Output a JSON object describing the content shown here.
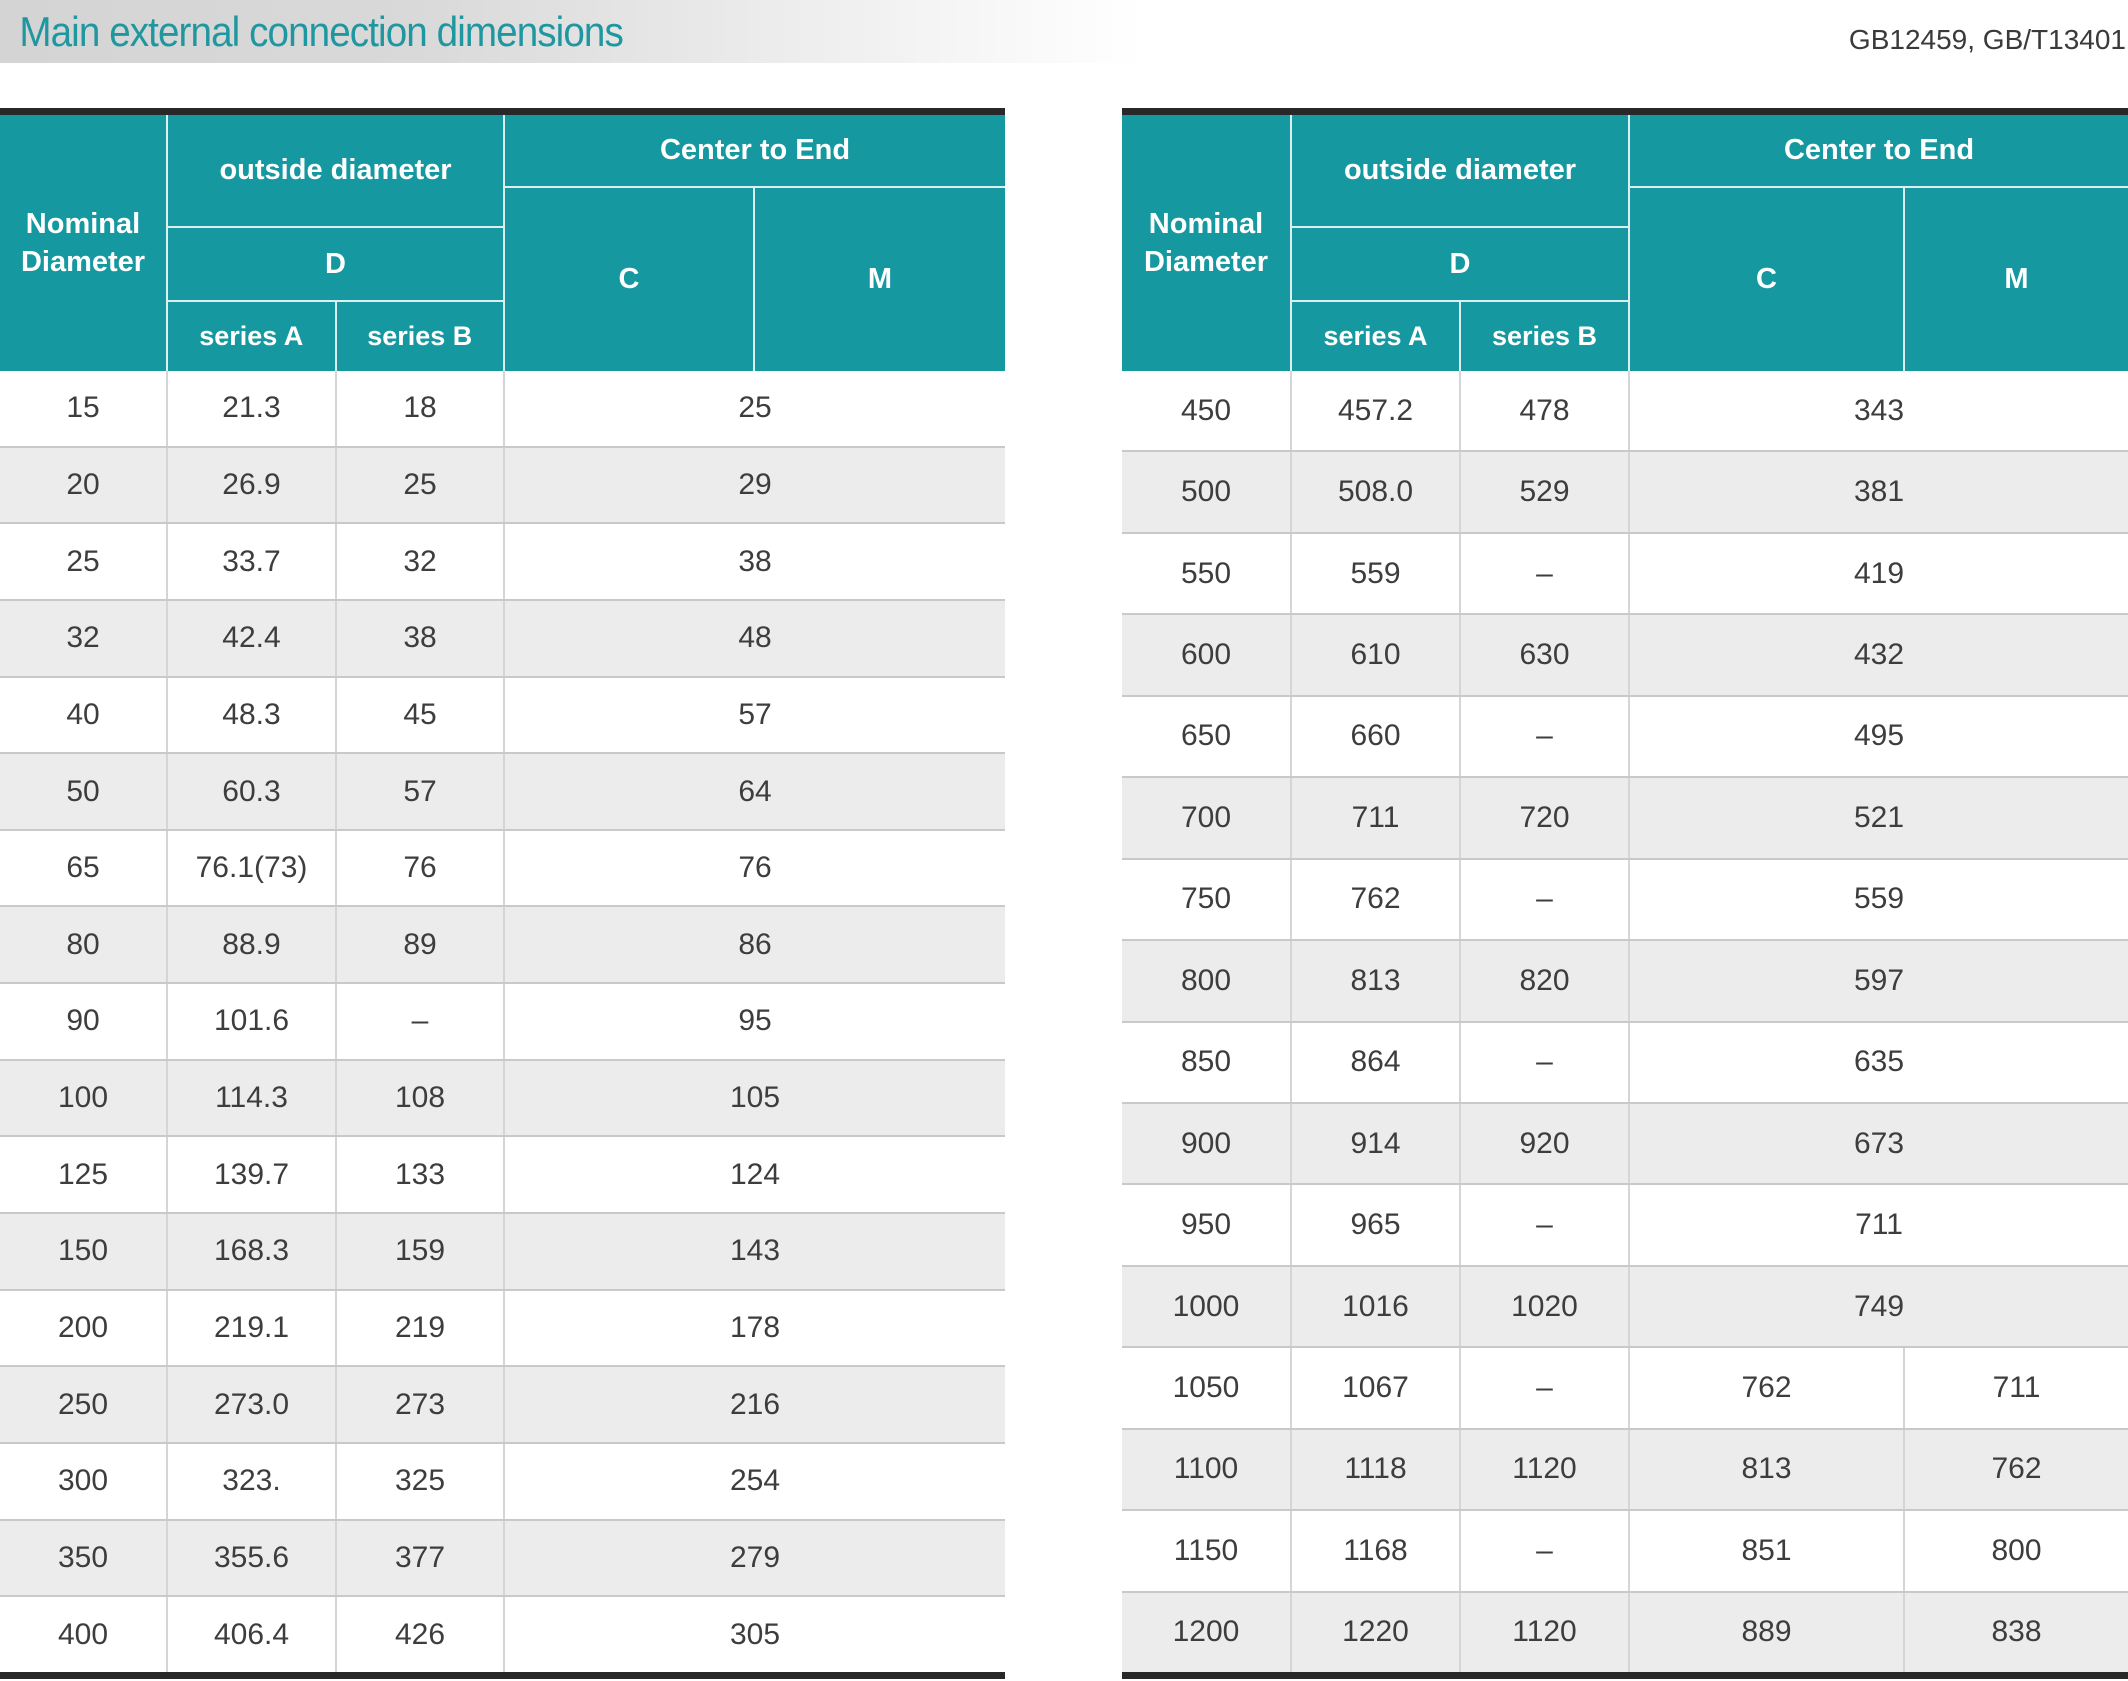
{
  "page": {
    "title": "Main external connection dimensions",
    "standards": "GB12459, GB/T13401"
  },
  "colors": {
    "accent_teal": "#1598a0",
    "title_teal": "#1f97a0",
    "row_stripe": "#ececec",
    "table_end_bar": "#282828",
    "body_text": "#3d3d3d"
  },
  "header_labels": {
    "nominal": [
      "Nominal",
      "Diameter"
    ],
    "outside_diameter": "outside diameter",
    "d": "D",
    "series_a": "series A",
    "series_b": "series B",
    "center_to_end": "Center to End",
    "c": "C",
    "m": "M"
  },
  "tables": [
    {
      "side": "left",
      "rows": [
        {
          "nominal": "15",
          "series_a": "21.3",
          "series_b": "18",
          "cm": "25"
        },
        {
          "nominal": "20",
          "series_a": "26.9",
          "series_b": "25",
          "cm": "29"
        },
        {
          "nominal": "25",
          "series_a": "33.7",
          "series_b": "32",
          "cm": "38"
        },
        {
          "nominal": "32",
          "series_a": "42.4",
          "series_b": "38",
          "cm": "48"
        },
        {
          "nominal": "40",
          "series_a": "48.3",
          "series_b": "45",
          "cm": "57"
        },
        {
          "nominal": "50",
          "series_a": "60.3",
          "series_b": "57",
          "cm": "64"
        },
        {
          "nominal": "65",
          "series_a": "76.1(73)",
          "series_b": "76",
          "cm": "76"
        },
        {
          "nominal": "80",
          "series_a": "88.9",
          "series_b": "89",
          "cm": "86"
        },
        {
          "nominal": "90",
          "series_a": "101.6",
          "series_b": "–",
          "cm": "95"
        },
        {
          "nominal": "100",
          "series_a": "114.3",
          "series_b": "108",
          "cm": "105"
        },
        {
          "nominal": "125",
          "series_a": "139.7",
          "series_b": "133",
          "cm": "124"
        },
        {
          "nominal": "150",
          "series_a": "168.3",
          "series_b": "159",
          "cm": "143"
        },
        {
          "nominal": "200",
          "series_a": "219.1",
          "series_b": "219",
          "cm": "178"
        },
        {
          "nominal": "250",
          "series_a": "273.0",
          "series_b": "273",
          "cm": "216"
        },
        {
          "nominal": "300",
          "series_a": "323.",
          "series_b": "325",
          "cm": "254"
        },
        {
          "nominal": "350",
          "series_a": "355.6",
          "series_b": "377",
          "cm": "279"
        },
        {
          "nominal": "400",
          "series_a": "406.4",
          "series_b": "426",
          "cm": "305"
        }
      ]
    },
    {
      "side": "right",
      "rows": [
        {
          "nominal": "450",
          "series_a": "457.2",
          "series_b": "478",
          "cm": "343"
        },
        {
          "nominal": "500",
          "series_a": "508.0",
          "series_b": "529",
          "cm": "381"
        },
        {
          "nominal": "550",
          "series_a": "559",
          "series_b": "–",
          "cm": "419"
        },
        {
          "nominal": "600",
          "series_a": "610",
          "series_b": "630",
          "cm": "432"
        },
        {
          "nominal": "650",
          "series_a": "660",
          "series_b": "–",
          "cm": "495"
        },
        {
          "nominal": "700",
          "series_a": "711",
          "series_b": "720",
          "cm": "521"
        },
        {
          "nominal": "750",
          "series_a": "762",
          "series_b": "–",
          "cm": "559"
        },
        {
          "nominal": "800",
          "series_a": "813",
          "series_b": "820",
          "cm": "597"
        },
        {
          "nominal": "850",
          "series_a": "864",
          "series_b": "–",
          "cm": "635"
        },
        {
          "nominal": "900",
          "series_a": "914",
          "series_b": "920",
          "cm": "673"
        },
        {
          "nominal": "950",
          "series_a": "965",
          "series_b": "–",
          "cm": "711"
        },
        {
          "nominal": "1000",
          "series_a": "1016",
          "series_b": "1020",
          "cm": "749"
        },
        {
          "nominal": "1050",
          "series_a": "1067",
          "series_b": "–",
          "c": "762",
          "m": "711"
        },
        {
          "nominal": "1100",
          "series_a": "1118",
          "series_b": "1120",
          "c": "813",
          "m": "762"
        },
        {
          "nominal": "1150",
          "series_a": "1168",
          "series_b": "–",
          "c": "851",
          "m": "800"
        },
        {
          "nominal": "1200",
          "series_a": "1220",
          "series_b": "1120",
          "c": "889",
          "m": "838"
        }
      ]
    }
  ]
}
